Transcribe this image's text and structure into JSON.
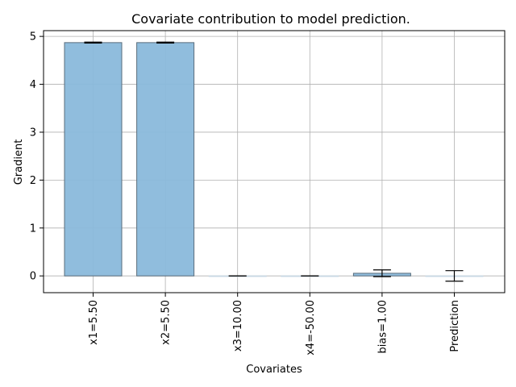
{
  "chart_data": {
    "type": "bar",
    "title": "Covariate contribution to model prediction.",
    "xlabel": "Covariates",
    "ylabel": "Gradient",
    "categories": [
      "x1=5.50",
      "x2=5.50",
      "x3=10.00",
      "x4=-50.00",
      "bias=1.00",
      "Prediction"
    ],
    "values": [
      4.87,
      4.87,
      0.0,
      0.0,
      0.055,
      0.0
    ],
    "errors": [
      0.01,
      0.01,
      0.0,
      0.0,
      0.07,
      0.11
    ],
    "ylim": [
      -0.35,
      5.12
    ],
    "yticks": [
      0,
      1,
      2,
      3,
      4,
      5
    ],
    "grid": true,
    "bar_color": "#8ab9db",
    "edge_color": "#5a6d7c",
    "grid_color": "#b0b0b0"
  }
}
